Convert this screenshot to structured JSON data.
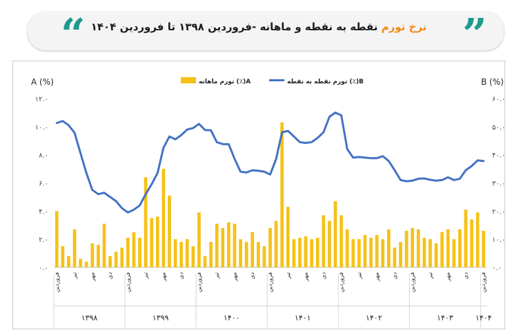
{
  "header": {
    "title_highlight": "نرخ تورم",
    "title_rest": "نقطه به نقطه و ماهانه -فروردین ۱۳۹۸ تا فروردین ۱۴۰۴"
  },
  "colors": {
    "accent": "#1f9a8c",
    "highlight": "#f28a14",
    "bars": "#f5c218",
    "line": "#4472c4"
  },
  "chart_data": {
    "type": "bar",
    "title": "",
    "left_axis_label": "A (%)",
    "right_axis_label": "B (%)",
    "left_ticks": [
      "۱۲.۰",
      "۱۰.۰",
      "۸.۰",
      "۶.۰",
      "۴.۰",
      "۲.۰",
      "۰.۰"
    ],
    "right_ticks": [
      "۶۰.۰",
      "۵۰.۰",
      "۴۰.۰",
      "۳۰.۰",
      "۲۰.۰",
      "۱۰.۰",
      "۰.۰"
    ],
    "ylim_left": [
      0,
      12
    ],
    "ylim_right": [
      0,
      60
    ],
    "legend": [
      {
        "key": "bars",
        "label": "تورم ماهانه (٪)A"
      },
      {
        "key": "line",
        "label": "تورم نقطه به نقطه (٪)B"
      }
    ],
    "legend_position": "top",
    "month_labels": [
      {
        "index": 0,
        "text": "فروردین"
      },
      {
        "index": 3,
        "text": "تیر"
      },
      {
        "index": 6,
        "text": "مهر"
      },
      {
        "index": 9,
        "text": "دی"
      },
      {
        "index": 12,
        "text": "فروردین"
      },
      {
        "index": 15,
        "text": "تیر"
      },
      {
        "index": 18,
        "text": "مهر"
      },
      {
        "index": 21,
        "text": "دی"
      },
      {
        "index": 24,
        "text": "فروردین"
      },
      {
        "index": 27,
        "text": "تیر"
      },
      {
        "index": 30,
        "text": "مهر"
      },
      {
        "index": 33,
        "text": "دی"
      },
      {
        "index": 36,
        "text": "فروردین"
      },
      {
        "index": 39,
        "text": "تیر"
      },
      {
        "index": 42,
        "text": "مهر"
      },
      {
        "index": 45,
        "text": "دی"
      },
      {
        "index": 48,
        "text": "فروردین"
      },
      {
        "index": 51,
        "text": "تیر"
      },
      {
        "index": 54,
        "text": "مهر"
      },
      {
        "index": 57,
        "text": "دی"
      },
      {
        "index": 60,
        "text": "فروردین"
      },
      {
        "index": 63,
        "text": "تیر"
      },
      {
        "index": 66,
        "text": "مهر"
      },
      {
        "index": 69,
        "text": "دی"
      },
      {
        "index": 72,
        "text": "فروردین"
      }
    ],
    "year_groups": [
      {
        "label": "۱۳۹۸",
        "start": 0,
        "end": 11
      },
      {
        "label": "۱۳۹۹",
        "start": 12,
        "end": 23
      },
      {
        "label": "۱۴۰۰",
        "start": 24,
        "end": 35
      },
      {
        "label": "۱۴۰۱",
        "start": 36,
        "end": 47
      },
      {
        "label": "۱۴۰۲",
        "start": 48,
        "end": 59
      },
      {
        "label": "۱۴۰۳",
        "start": 60,
        "end": 71
      },
      {
        "label": "۱۴۰۴",
        "start": 72,
        "end": 72
      }
    ],
    "series": [
      {
        "key": "bars",
        "type": "bar",
        "values": [
          4.0,
          1.5,
          0.8,
          2.7,
          0.6,
          0.4,
          1.7,
          1.6,
          3.1,
          0.8,
          1.1,
          1.4,
          2.1,
          2.5,
          2.1,
          6.4,
          3.5,
          3.6,
          7.0,
          5.1,
          2.0,
          1.8,
          2.0,
          1.5,
          3.9,
          0.8,
          1.8,
          3.1,
          2.8,
          3.2,
          3.1,
          2.0,
          1.8,
          2.5,
          1.8,
          1.5,
          2.8,
          3.3,
          10.3,
          4.3,
          2.0,
          2.1,
          2.2,
          2.0,
          2.1,
          3.7,
          3.3,
          4.7,
          3.7,
          2.7,
          2.0,
          2.0,
          2.3,
          2.1,
          2.3,
          2.0,
          2.7,
          1.4,
          1.8,
          2.6,
          2.8,
          2.7,
          2.1,
          2.0,
          1.7,
          2.5,
          2.7,
          2.0,
          2.7,
          4.1,
          3.4,
          3.9,
          2.6
        ]
      },
      {
        "key": "line",
        "type": "line",
        "axis": "right",
        "values": [
          51.3,
          52.0,
          50.5,
          47.8,
          40.5,
          33.5,
          27.5,
          26.0,
          26.5,
          25.0,
          23.5,
          21.0,
          19.5,
          20.5,
          22.0,
          26.0,
          29.5,
          33.5,
          42.5,
          46.5,
          45.5,
          47.0,
          49.0,
          49.5,
          51.0,
          48.8,
          48.7,
          44.5,
          43.8,
          43.8,
          38.5,
          34.0,
          33.7,
          34.5,
          34.3,
          34.0,
          33.0,
          38.5,
          48.0,
          48.5,
          46.5,
          44.5,
          44.2,
          44.5,
          46.0,
          48.0,
          53.5,
          55.0,
          54.0,
          42.0,
          39.0,
          39.2,
          39.0,
          38.8,
          38.8,
          39.5,
          37.8,
          34.5,
          31.0,
          30.6,
          30.8,
          31.5,
          31.6,
          31.1,
          30.8,
          31.0,
          32.0,
          31.0,
          31.5,
          34.5,
          36.0,
          38.0,
          37.8
        ]
      }
    ]
  }
}
